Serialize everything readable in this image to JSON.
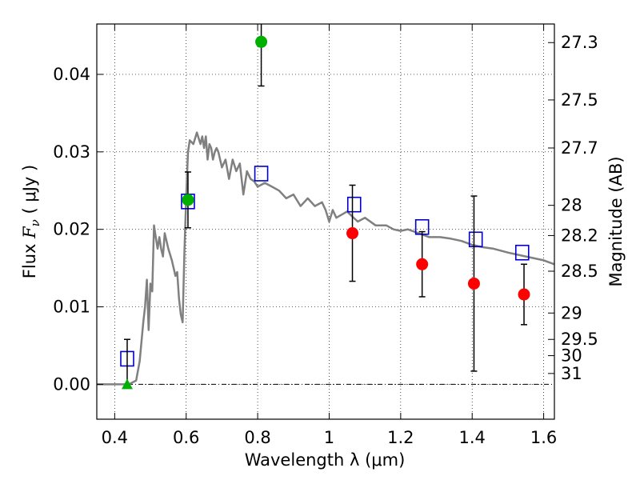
{
  "chart_data": {
    "type": "scatter",
    "xlabel": "Wavelength  λ (μm)",
    "ylabel": "Flux  Fν  ( μJy )",
    "ylabel_parts": {
      "prefix": "Flux  ",
      "symbol": "F",
      "subscript": "ν",
      "unit": "  ( μJy )"
    },
    "y2label": "Magnitude (AB)",
    "xlim": [
      0.35,
      1.63
    ],
    "ylim": [
      -0.0045,
      0.0465
    ],
    "grid": true,
    "xticks": [
      0.4,
      0.6,
      0.8,
      1.0,
      1.2,
      1.4,
      1.6
    ],
    "xtick_labels": [
      "0.4",
      "0.6",
      "0.8",
      "1",
      "1.2",
      "1.4",
      "1.6"
    ],
    "yticks": [
      0.0,
      0.01,
      0.02,
      0.03,
      0.04
    ],
    "ytick_labels": [
      "0.00",
      "0.01",
      "0.02",
      "0.03",
      "0.04"
    ],
    "magnitude_ticks": [
      {
        "label": "27.3",
        "flux": 0.0441
      },
      {
        "label": "27.5",
        "flux": 0.0367
      },
      {
        "label": "27.7",
        "flux": 0.0305
      },
      {
        "label": "28",
        "flux": 0.0231
      },
      {
        "label": "28.2",
        "flux": 0.0192
      },
      {
        "label": "28.5",
        "flux": 0.0146
      },
      {
        "label": "29",
        "flux": 0.0092
      },
      {
        "label": "29.5",
        "flux": 0.0058
      },
      {
        "label": "30",
        "flux": 0.0037
      },
      {
        "label": "31",
        "flux": 0.0014
      }
    ],
    "colors": {
      "sed_line": "#808080",
      "model_points": "#0000cc",
      "green_points": "#00b000",
      "red_points": "#ff0000",
      "errorbar": "#000000",
      "zero_line": "#000000"
    },
    "series": [
      {
        "kind": "line",
        "x": [
          0.35,
          0.42,
          0.44,
          0.46,
          0.47,
          0.48,
          0.485,
          0.49,
          0.495,
          0.5,
          0.505,
          0.51,
          0.515,
          0.52,
          0.525,
          0.53,
          0.535,
          0.54,
          0.55,
          0.56,
          0.57,
          0.575,
          0.58,
          0.585,
          0.59,
          0.595,
          0.6,
          0.605,
          0.61,
          0.62,
          0.63,
          0.64,
          0.645,
          0.65,
          0.655,
          0.66,
          0.665,
          0.67,
          0.675,
          0.68,
          0.685,
          0.69,
          0.7,
          0.71,
          0.72,
          0.73,
          0.74,
          0.75,
          0.76,
          0.77,
          0.78,
          0.79,
          0.8,
          0.82,
          0.84,
          0.86,
          0.88,
          0.9,
          0.92,
          0.94,
          0.96,
          0.98,
          0.99,
          1.0,
          1.01,
          1.02,
          1.05,
          1.08,
          1.1,
          1.13,
          1.16,
          1.18,
          1.2,
          1.22,
          1.25,
          1.28,
          1.31,
          1.34,
          1.37,
          1.4,
          1.43,
          1.46,
          1.5,
          1.55,
          1.6,
          1.63
        ],
        "y": [
          0.0,
          0.0,
          0.0,
          0.0005,
          0.003,
          0.008,
          0.01,
          0.0135,
          0.007,
          0.013,
          0.012,
          0.0205,
          0.019,
          0.0175,
          0.019,
          0.0175,
          0.0165,
          0.0195,
          0.0175,
          0.016,
          0.014,
          0.0145,
          0.011,
          0.009,
          0.008,
          0.017,
          0.024,
          0.03,
          0.0315,
          0.031,
          0.0325,
          0.031,
          0.032,
          0.0305,
          0.032,
          0.029,
          0.031,
          0.0305,
          0.029,
          0.03,
          0.0305,
          0.03,
          0.028,
          0.029,
          0.0265,
          0.029,
          0.0275,
          0.0285,
          0.0245,
          0.0275,
          0.0265,
          0.0262,
          0.0255,
          0.026,
          0.0255,
          0.025,
          0.024,
          0.0245,
          0.023,
          0.024,
          0.023,
          0.0235,
          0.0225,
          0.021,
          0.0225,
          0.0215,
          0.0223,
          0.021,
          0.0215,
          0.0205,
          0.0205,
          0.02,
          0.0198,
          0.02,
          0.0195,
          0.019,
          0.019,
          0.0188,
          0.0185,
          0.018,
          0.0177,
          0.0175,
          0.017,
          0.0165,
          0.016,
          0.0155
        ]
      },
      {
        "kind": "scatter",
        "marker": "open-square",
        "x": [
          0.435,
          0.605,
          0.81,
          1.07,
          1.26,
          1.41,
          1.54
        ],
        "y": [
          0.0033,
          0.0236,
          0.0272,
          0.0232,
          0.0203,
          0.0187,
          0.017
        ]
      },
      {
        "kind": "scatter",
        "marker": "circle",
        "x": [
          0.605,
          0.81
        ],
        "y": [
          0.0238,
          0.0442
        ],
        "yerr": [
          0.0036,
          0.0057
        ]
      },
      {
        "kind": "scatter",
        "marker": "triangle",
        "x": [
          0.435
        ],
        "y": [
          0.0
        ],
        "yerr_upper": [
          0.0058
        ]
      },
      {
        "kind": "scatter",
        "marker": "circle",
        "x": [
          1.065,
          1.26,
          1.405,
          1.545
        ],
        "y": [
          0.0195,
          0.0155,
          0.013,
          0.0116
        ],
        "yerr": [
          0.0062,
          0.0042,
          0.0113,
          0.0039
        ]
      }
    ]
  }
}
